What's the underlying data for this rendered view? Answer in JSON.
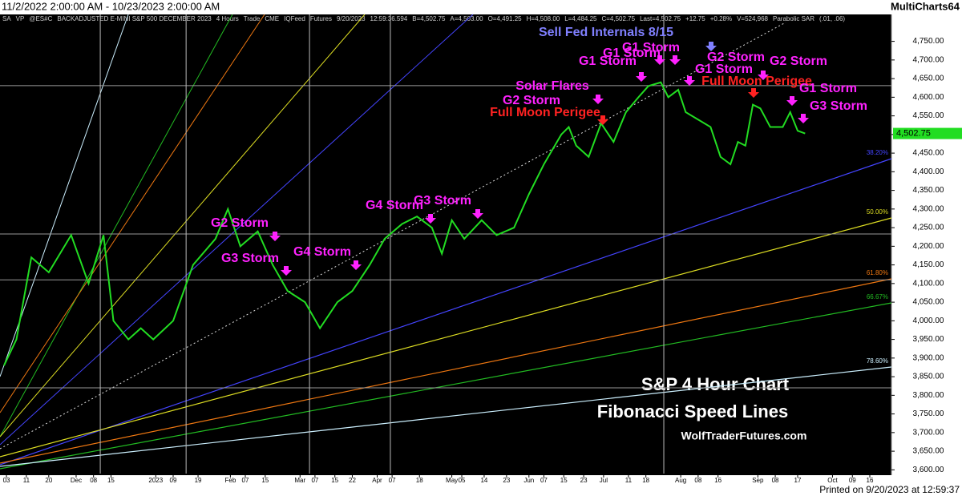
{
  "header": {
    "range": "11/2/2022 2:00:00 AM - 10/23/2023 2:00:00 AM",
    "app": "MultiCharts64"
  },
  "toolbar": [
    "SA",
    "VP",
    "@ES#C",
    "BACKADJUSTED E-MINI S&P 500 DECEMBER 2023",
    "4 Hours",
    "Trade",
    "CME",
    "IQFeed",
    "Futures",
    "9/20/2023",
    "12:59:36.594",
    "B=4,502.75",
    "A=4,503.00",
    "O=4,491.25",
    "H=4,508.00",
    "L=4,484.25",
    "C=4,502.75",
    "Last=4,502.75",
    "+12.75",
    "+0.28%",
    "V=524,968",
    "Parabolic SAR",
    "(.01, .06)"
  ],
  "footer": "Printed on 9/20/2023 at 12:59:37",
  "chart_data": {
    "type": "line",
    "title": "S&P 4 Hour Chart",
    "subtitle": "Fibonacci Speed Lines",
    "watermark": "WolfTraderFutures.com",
    "x": [
      0,
      5,
      11,
      18,
      27,
      34,
      40,
      44,
      50,
      55,
      60,
      68,
      76,
      85,
      90,
      95,
      102,
      108,
      114,
      121,
      127,
      134,
      140,
      147,
      153,
      160,
      166,
      172,
      176,
      180,
      185,
      192,
      198,
      205,
      211,
      217,
      224,
      227,
      230,
      235,
      240,
      245,
      250,
      255,
      259,
      264,
      267,
      271,
      274,
      279,
      284,
      288,
      292,
      295,
      298,
      301,
      304,
      308,
      313,
      316,
      319,
      322
    ],
    "series": [
      {
        "name": "@ES#C",
        "color": "#22dd22",
        "values": [
          3880,
          3950,
          4170,
          4130,
          4230,
          4100,
          4230,
          4000,
          3950,
          3980,
          3950,
          4000,
          4150,
          4220,
          4300,
          4200,
          4240,
          4150,
          4080,
          4050,
          3980,
          4050,
          4080,
          4150,
          4220,
          4260,
          4280,
          4250,
          4180,
          4270,
          4220,
          4270,
          4230,
          4250,
          4340,
          4420,
          4500,
          4520,
          4470,
          4440,
          4530,
          4480,
          4560,
          4600,
          4630,
          4640,
          4600,
          4620,
          4560,
          4540,
          4520,
          4440,
          4420,
          4480,
          4470,
          4580,
          4570,
          4520,
          4520,
          4560,
          4510,
          4502.75
        ]
      }
    ],
    "last_price": {
      "value": 4502.75,
      "label": "4,502.75"
    },
    "xlim": [
      -1.6,
      356.7
    ],
    "ylim": [
      3590,
      4790
    ],
    "xticks": [
      {
        "value": 1,
        "label": "03"
      },
      {
        "value": 9,
        "label": "11"
      },
      {
        "value": 18,
        "label": "20"
      },
      {
        "value": 29,
        "label": "Dec"
      },
      {
        "value": 36,
        "label": "08"
      },
      {
        "value": 43,
        "label": "15"
      },
      {
        "value": 61,
        "label": "2023"
      },
      {
        "value": 68,
        "label": "09"
      },
      {
        "value": 78,
        "label": "19"
      },
      {
        "value": 91,
        "label": "Feb"
      },
      {
        "value": 97,
        "label": "07"
      },
      {
        "value": 105,
        "label": "15"
      },
      {
        "value": 119,
        "label": "Mar"
      },
      {
        "value": 125,
        "label": "07"
      },
      {
        "value": 133,
        "label": "15"
      },
      {
        "value": 140,
        "label": "22"
      },
      {
        "value": 150,
        "label": "Apr"
      },
      {
        "value": 156,
        "label": "07"
      },
      {
        "value": 167,
        "label": "18"
      },
      {
        "value": 180,
        "label": "May"
      },
      {
        "value": 184,
        "label": "05"
      },
      {
        "value": 193,
        "label": "14"
      },
      {
        "value": 202,
        "label": "23"
      },
      {
        "value": 211,
        "label": "Jun"
      },
      {
        "value": 217,
        "label": "07"
      },
      {
        "value": 225,
        "label": "15"
      },
      {
        "value": 233,
        "label": "23"
      },
      {
        "value": 241,
        "label": "Jul"
      },
      {
        "value": 251,
        "label": "11"
      },
      {
        "value": 258,
        "label": "18"
      },
      {
        "value": 272,
        "label": "Aug"
      },
      {
        "value": 279,
        "label": "08"
      },
      {
        "value": 287,
        "label": "16"
      },
      {
        "value": 303,
        "label": "Sep"
      },
      {
        "value": 310,
        "label": "08"
      },
      {
        "value": 319,
        "label": "17"
      },
      {
        "value": 333,
        "label": "Oct"
      },
      {
        "value": 341,
        "label": "09"
      },
      {
        "value": 348,
        "label": "16"
      }
    ],
    "yticks": [
      {
        "value": 3600,
        "label": "3,600.00"
      },
      {
        "value": 3650,
        "label": "3,650.00"
      },
      {
        "value": 3700,
        "label": "3,700.00"
      },
      {
        "value": 3750,
        "label": "3,750.00"
      },
      {
        "value": 3800,
        "label": "3,800.00"
      },
      {
        "value": 3850,
        "label": "3,850.00"
      },
      {
        "value": 3900,
        "label": "3,900.00"
      },
      {
        "value": 3950,
        "label": "3,950.00"
      },
      {
        "value": 4000,
        "label": "4,000.00"
      },
      {
        "value": 4050,
        "label": "4,050.00"
      },
      {
        "value": 4100,
        "label": "4,100.00"
      },
      {
        "value": 4150,
        "label": "4,150.00"
      },
      {
        "value": 4200,
        "label": "4,200.00"
      },
      {
        "value": 4250,
        "label": "4,250.00"
      },
      {
        "value": 4300,
        "label": "4,300.00"
      },
      {
        "value": 4350,
        "label": "4,350.00"
      },
      {
        "value": 4400,
        "label": "4,400.00"
      },
      {
        "value": 4450,
        "label": "4,450.00"
      },
      {
        "value": 4500,
        "label": "4,500.00"
      },
      {
        "value": 4550,
        "label": "4,550.00"
      },
      {
        "value": 4600,
        "label": "4,600.00"
      },
      {
        "value": 4650,
        "label": "4,650.00"
      },
      {
        "value": 4700,
        "label": "4,700.00"
      },
      {
        "value": 4750,
        "label": "4,750.00"
      }
    ],
    "horizontal_lines": [
      4631,
      4233,
      4110,
      3820
    ],
    "vertical_lines": [
      38.7,
      73.2,
      122.8,
      155.3,
      265.2
    ],
    "fib_levels": [
      {
        "label": "38.20%",
        "color": "#4444ff"
      },
      {
        "label": "50.00%",
        "color": "#dddd22"
      },
      {
        "label": "61.80%",
        "color": "#ee7711"
      },
      {
        "label": "66.67%",
        "color": "#22bb22"
      },
      {
        "label": "78.60%",
        "color": "#ccf0ff"
      }
    ],
    "annotations": [
      {
        "text": "Sell Fed Internals 8/15",
        "color": "#8080ff"
      },
      {
        "text": "G1 Storm",
        "color": "#ff22ff"
      },
      {
        "text": "G1 Storm",
        "color": "#ff22ff"
      },
      {
        "text": "G1 Storm",
        "color": "#ff22ff"
      },
      {
        "text": "G2 Storm",
        "color": "#ff22ff"
      },
      {
        "text": "G2 Storm",
        "color": "#ff22ff"
      },
      {
        "text": "G1 Storm",
        "color": "#ff22ff"
      },
      {
        "text": "Full Moon Perigee",
        "color": "#ff2222"
      },
      {
        "text": "G1 Storm",
        "color": "#ff22ff"
      },
      {
        "text": "G3 Storm",
        "color": "#ff22ff"
      },
      {
        "text": "Solar Flares",
        "color": "#ff22ff"
      },
      {
        "text": "G2 Storm",
        "color": "#ff22ff"
      },
      {
        "text": "Full Moon Perigee",
        "color": "#ff2222"
      },
      {
        "text": "G4 Storm",
        "color": "#ff22ff"
      },
      {
        "text": "G3 Storm",
        "color": "#ff22ff"
      },
      {
        "text": "G2 Storm",
        "color": "#ff22ff"
      },
      {
        "text": "G3 Storm",
        "color": "#ff22ff"
      },
      {
        "text": "G4 Storm",
        "color": "#ff22ff"
      }
    ]
  }
}
